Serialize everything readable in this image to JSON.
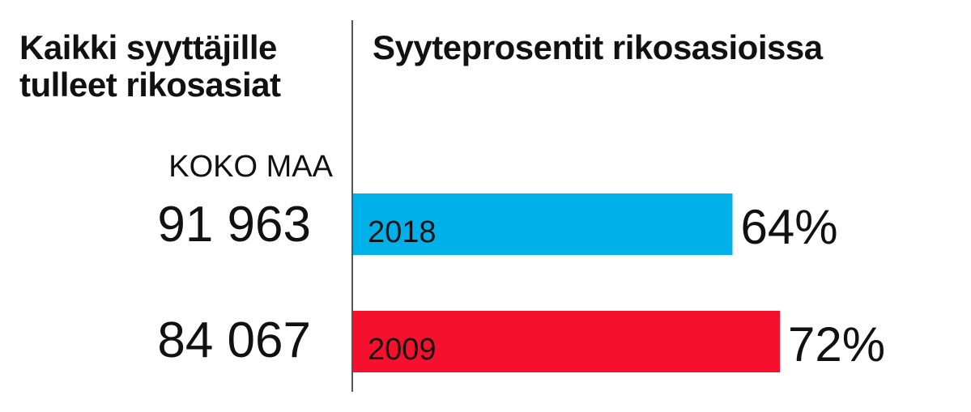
{
  "left_title": "Kaikki syyttäjille\ntulleet rikosasiat",
  "region_label": "KOKO MAA",
  "totals": [
    "91 963",
    "84 067"
  ],
  "chart_data": {
    "type": "bar",
    "orientation": "horizontal",
    "title": "Syyteprosentit rikosasioissa",
    "categories": [
      "2018",
      "2009"
    ],
    "values": [
      64,
      72
    ],
    "value_labels": [
      "64%",
      "72%"
    ],
    "colors": [
      "#00b0e8",
      "#f5102d"
    ],
    "grid": false,
    "legend": "none"
  }
}
